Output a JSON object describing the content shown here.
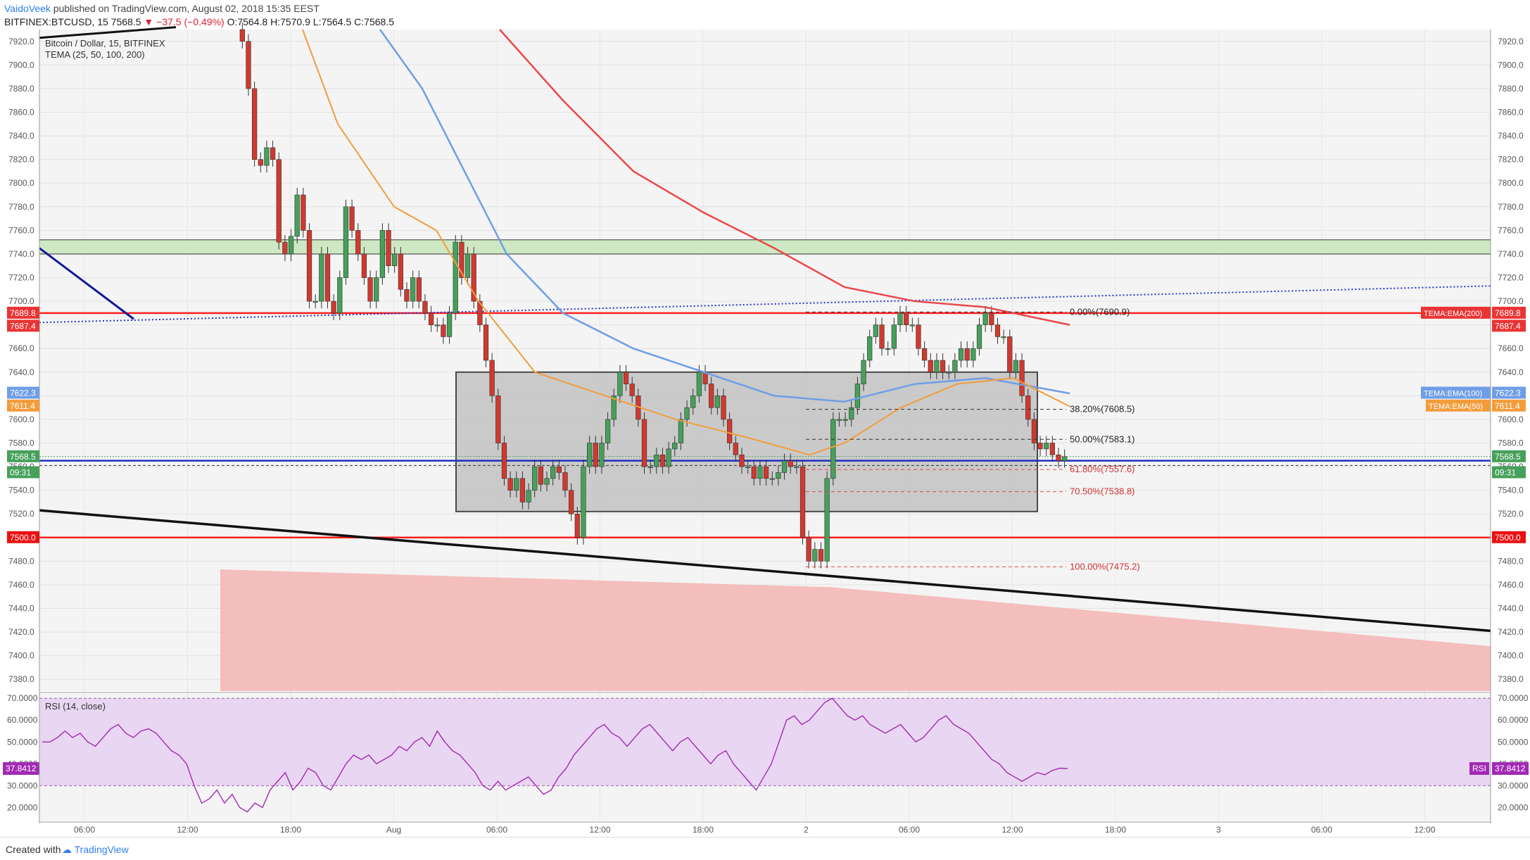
{
  "header": {
    "author": "VaidoVeek",
    "published": "published on TradingView.com, August 02, 2018 15:35 EEST",
    "symbol": "BITFINEX:BTCUSD, 15",
    "last": "7568.5",
    "change": "−37.5 (−0.49%)",
    "ohlc": "O:7564.8 H:7570.9 L:7564.5 C:7568.5"
  },
  "legend": {
    "line1": "Bitcoin / Dollar, 15, BITFINEX",
    "line2": "TEMA (25, 50, 100, 200)",
    "rsi": "RSI (14, close)"
  },
  "footer": {
    "created": "Created with",
    "brand": "TradingView"
  },
  "colors": {
    "up": "#46a05a",
    "down": "#d0392f",
    "tema25": "#f39c3c",
    "tema50": "#f39c3c",
    "tema100": "#6f9ee6",
    "tema200": "#ea4848",
    "hline": "#ff2020",
    "blueline": "#1e2fbf",
    "rsi": "#a12ab5",
    "rsiband": "#e9d6f2",
    "zone": "#bdbdbd",
    "supply": "#cfe8c4",
    "demand": "#f4b8b6"
  },
  "chart_data": {
    "type": "candlestick",
    "price_axis": {
      "min": 7370,
      "max": 7930,
      "ticks": [
        7380,
        7400,
        7420,
        7440,
        7460,
        7480,
        7500,
        7520,
        7540,
        7560,
        7580,
        7600,
        7620,
        7640,
        7660,
        7680,
        7700,
        7720,
        7740,
        7760,
        7780,
        7800,
        7820,
        7840,
        7860,
        7880,
        7900,
        7920
      ]
    },
    "time_labels": [
      "06:00",
      "12:00",
      "18:00",
      "Aug",
      "06:00",
      "12:00",
      "18:00",
      "2",
      "06:00",
      "12:00",
      "18:00",
      "3",
      "06:00",
      "12:00"
    ],
    "price_badges_left": [
      {
        "label": "7689.8",
        "color": "#ea3434"
      },
      {
        "label": "7687.4",
        "color": "#ea3434"
      },
      {
        "label": "7622.3",
        "color": "#6f9ee6"
      },
      {
        "label": "7611.4",
        "color": "#f39c3c"
      },
      {
        "label": "7568.5",
        "color": "#46a05a"
      },
      {
        "label": "09:31",
        "color": "#46a05a"
      },
      {
        "label": "7500.0",
        "color": "#ea1010"
      }
    ],
    "price_badges_right": [
      {
        "label": "7689.8",
        "name": "TEMA:EMA(200)",
        "color": "#ea3434"
      },
      {
        "label": "7687.4",
        "color": "#ea3434"
      },
      {
        "label": "7622.3",
        "name": "TEMA:EMA(100)",
        "color": "#6f9ee6"
      },
      {
        "label": "7611.4",
        "name": "TEMA:EMA(50)",
        "color": "#f39c3c"
      },
      {
        "label": "7568.5",
        "color": "#46a05a"
      },
      {
        "label": "09:31",
        "color": "#46a05a"
      },
      {
        "label": "7500.0",
        "color": "#ea1010"
      }
    ],
    "horizontal_lines": [
      7690,
      7500
    ],
    "blue_line": 7565,
    "supply_zone": [
      7740,
      7752
    ],
    "range_box": {
      "top": 7640,
      "bottom": 7522
    },
    "fib_levels": [
      {
        "label": "0.00%(7690.9)",
        "price": 7690.9
      },
      {
        "label": "38.20%(7608.5)",
        "price": 7608.5
      },
      {
        "label": "50.00%(7583.1)",
        "price": 7583.1
      },
      {
        "label": "61.80%(7557.6)",
        "price": 7557.6
      },
      {
        "label": "70.50%(7538.8)",
        "price": 7538.8
      },
      {
        "label": "100.00%(7475.2)",
        "price": 7475.2
      }
    ],
    "candles_close": [
      7920,
      7880,
      7820,
      7815,
      7830,
      7820,
      7750,
      7740,
      7755,
      7790,
      7760,
      7700,
      7700,
      7740,
      7700,
      7690,
      7720,
      7780,
      7760,
      7740,
      7720,
      7700,
      7720,
      7760,
      7730,
      7740,
      7710,
      7700,
      7720,
      7700,
      7690,
      7680,
      7680,
      7670,
      7690,
      7750,
      7720,
      7740,
      7700,
      7680,
      7650,
      7620,
      7580,
      7550,
      7540,
      7550,
      7530,
      7540,
      7560,
      7545,
      7550,
      7560,
      7555,
      7540,
      7520,
      7500,
      7560,
      7580,
      7560,
      7580,
      7600,
      7620,
      7640,
      7630,
      7620,
      7600,
      7560,
      7560,
      7570,
      7560,
      7575,
      7580,
      7600,
      7610,
      7620,
      7640,
      7630,
      7610,
      7620,
      7600,
      7580,
      7570,
      7560,
      7560,
      7550,
      7560,
      7550,
      7550,
      7555,
      7565,
      7560,
      7560,
      7500,
      7480,
      7490,
      7480,
      7550,
      7600,
      7600,
      7600,
      7610,
      7630,
      7650,
      7670,
      7680,
      7660,
      7660,
      7680,
      7690,
      7680,
      7680,
      7660,
      7650,
      7640,
      7650,
      7640,
      7640,
      7650,
      7660,
      7650,
      7660,
      7680,
      7690,
      7680,
      7670,
      7670,
      7640,
      7650,
      7620,
      7600,
      7580,
      7575,
      7580,
      7570,
      7565,
      7568.5
    ],
    "rsi": {
      "levels": [
        70,
        30
      ],
      "ticks": [
        20,
        30,
        40,
        50,
        60,
        70
      ],
      "current": "37.8412",
      "label": "RSI",
      "values": [
        50,
        50,
        52,
        55,
        52,
        54,
        50,
        48,
        52,
        56,
        58,
        54,
        52,
        55,
        56,
        54,
        50,
        46,
        44,
        40,
        30,
        22,
        24,
        28,
        22,
        26,
        20,
        18,
        22,
        20,
        28,
        32,
        36,
        28,
        32,
        38,
        36,
        30,
        28,
        34,
        40,
        44,
        42,
        44,
        40,
        42,
        44,
        48,
        46,
        50,
        52,
        48,
        55,
        50,
        46,
        44,
        40,
        36,
        30,
        28,
        32,
        28,
        30,
        32,
        34,
        30,
        26,
        28,
        34,
        38,
        44,
        48,
        52,
        56,
        58,
        54,
        52,
        48,
        52,
        56,
        58,
        54,
        50,
        46,
        50,
        52,
        48,
        44,
        40,
        44,
        46,
        40,
        36,
        32,
        28,
        34,
        40,
        50,
        60,
        62,
        58,
        60,
        64,
        68,
        70,
        66,
        62,
        60,
        62,
        58,
        56,
        54,
        56,
        58,
        54,
        50,
        52,
        56,
        60,
        62,
        58,
        56,
        54,
        50,
        46,
        42,
        40,
        36,
        34,
        32,
        34,
        36,
        35,
        37,
        38,
        37.8
      ]
    }
  }
}
